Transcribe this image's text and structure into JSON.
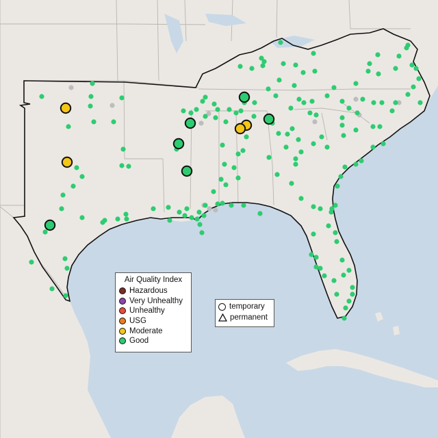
{
  "map": {
    "colors": {
      "water": "#c9d8e6",
      "land": "#ebe8e4",
      "border": "#b9b4ae",
      "region_outline": "#111111",
      "monitor_good": "#2ecc71",
      "monitor_moderate": "#f5c518",
      "monitor_inactive": "#bdbdbd"
    }
  },
  "aqi_legend": {
    "title": "Air Quality Index",
    "items": [
      {
        "label": "Hazardous",
        "color": "#7b2d26"
      },
      {
        "label": "Very Unhealthy",
        "color": "#8e44ad"
      },
      {
        "label": "Unhealthy",
        "color": "#e74c3c"
      },
      {
        "label": "USG",
        "color": "#e67e22"
      },
      {
        "label": "Moderate",
        "color": "#f5c518"
      },
      {
        "label": "Good",
        "color": "#2ecc71"
      }
    ]
  },
  "type_legend": {
    "temporary": "temporary",
    "permanent": "permanent"
  }
}
